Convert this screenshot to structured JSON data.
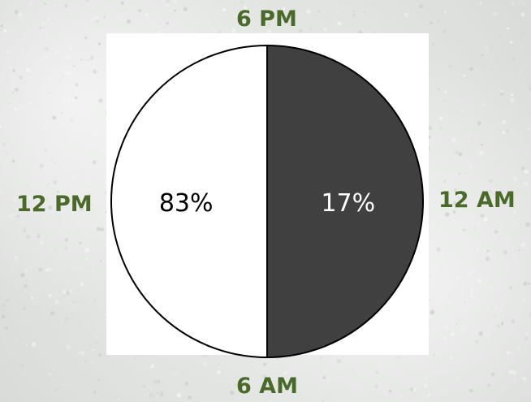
{
  "chart_data": {
    "type": "pie",
    "title": "",
    "clock_labels": {
      "top": "6 PM",
      "right": "12 AM",
      "bottom": "6 AM",
      "left": "12 PM"
    },
    "slices": [
      {
        "label": "83%",
        "value": 83,
        "color": "#ffffff",
        "text_color": "#000000"
      },
      {
        "label": "17%",
        "value": 17,
        "color": "#404040",
        "text_color": "#ffffff"
      }
    ],
    "grid": false,
    "legend": "none"
  }
}
